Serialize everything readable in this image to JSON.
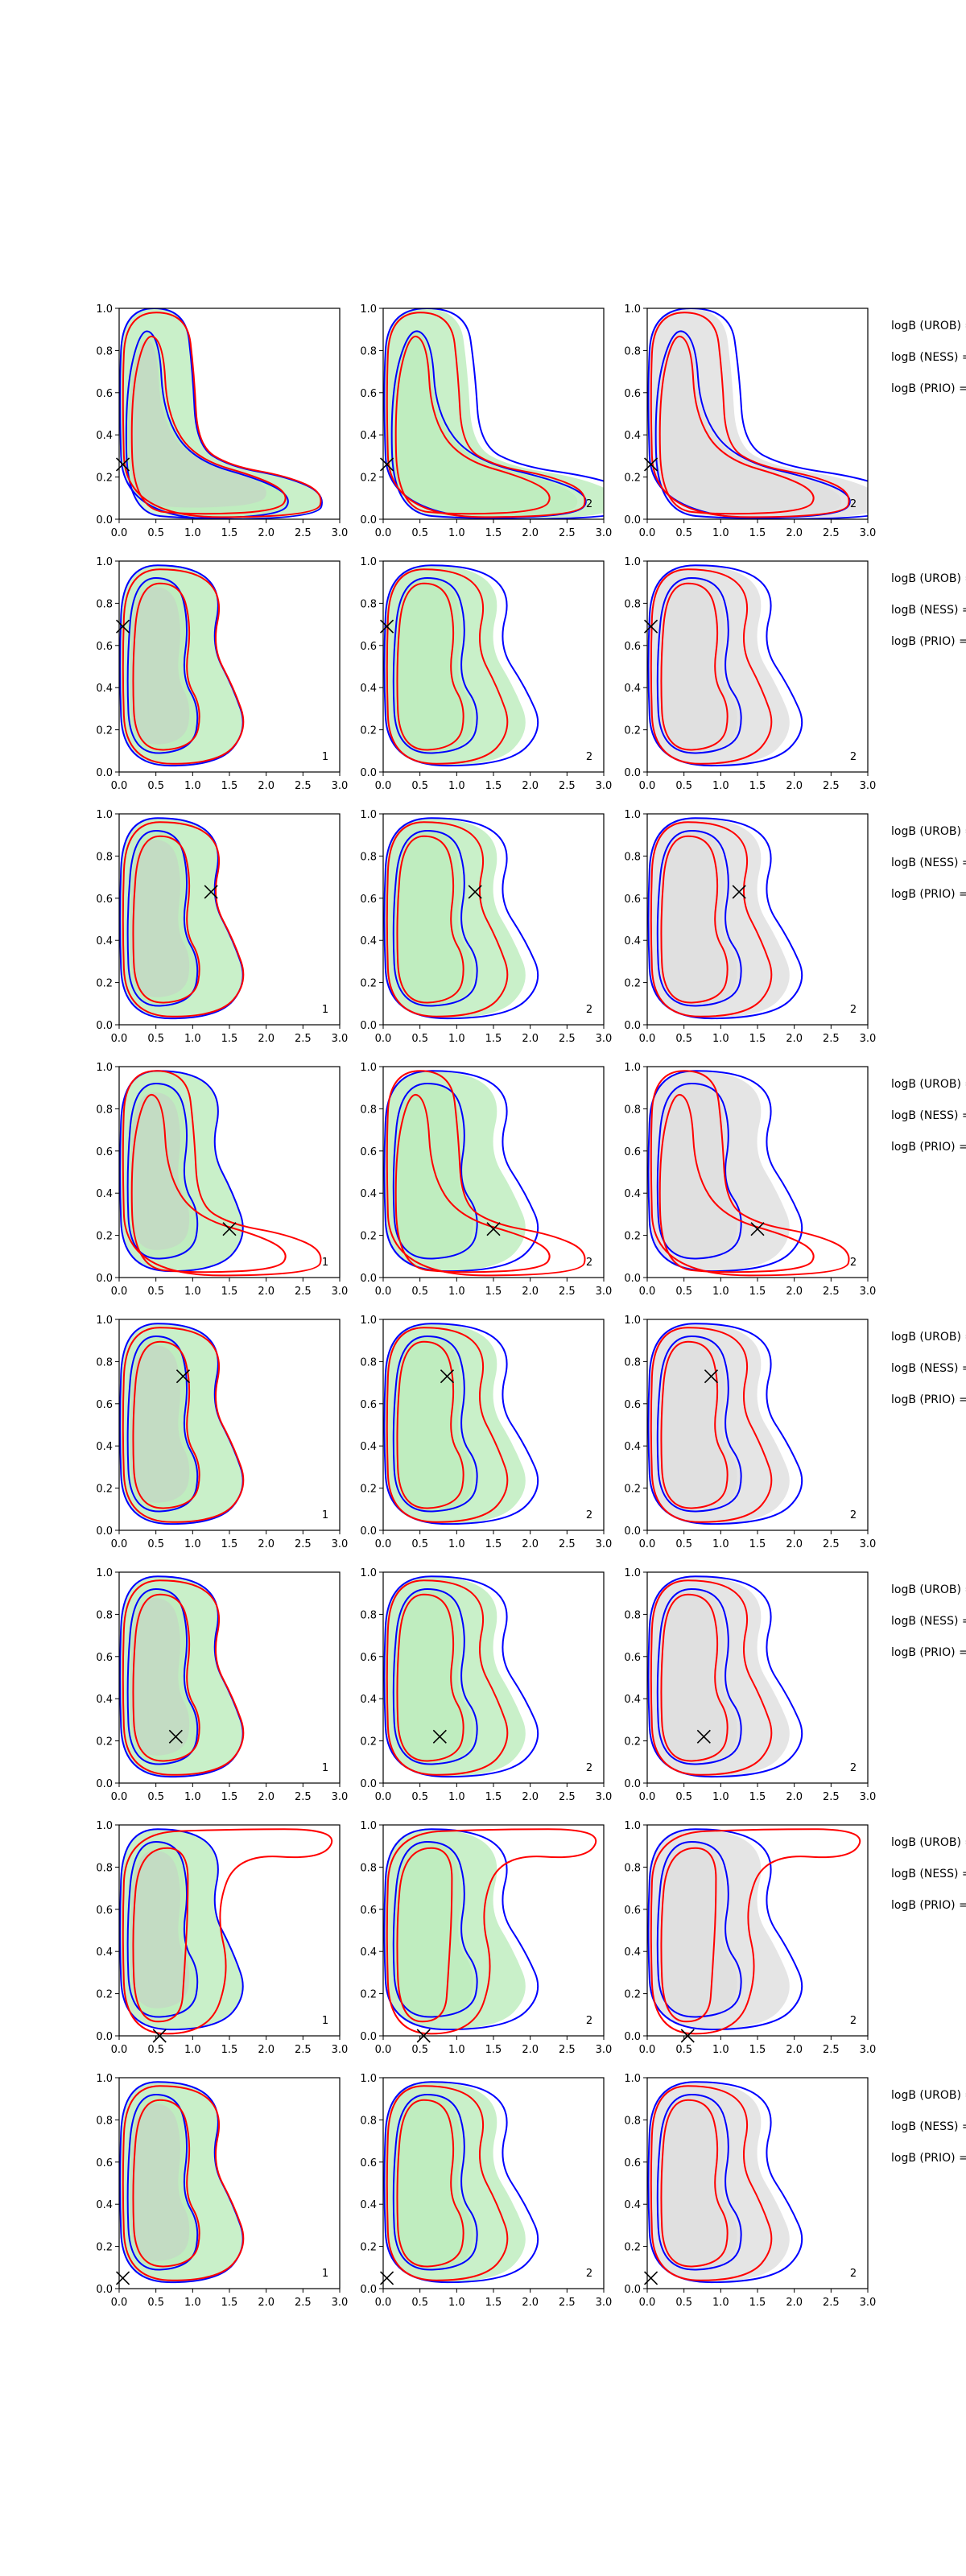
{
  "figure": {
    "legend_label_lines": [
      "logB (UROB) =",
      "logB (NESS) =",
      "logB (PRIO) ="
    ],
    "x_tick_labels": [
      "0.0",
      "0.5",
      "1.0",
      "1.5",
      "2.0",
      "2.5",
      "3.0"
    ],
    "y_tick_labels": [
      "0.0",
      "0.2",
      "0.4",
      "0.6",
      "0.8",
      "1.0"
    ],
    "colors": {
      "blue": "#0000ff",
      "red": "#ff0000",
      "green_fill": "#b7ebb7",
      "grey_fill": "#dcdcdc"
    }
  },
  "chart_data": [
    {
      "type": "contour",
      "row": 1,
      "xlim": [
        0,
        3
      ],
      "ylim": [
        0,
        1
      ],
      "marker": {
        "x": 0.05,
        "y": 0.26
      },
      "panel_labels": [
        "",
        "2",
        "2"
      ],
      "fill_shape": "wide",
      "red_shape": "wide",
      "blue_shape": "wide"
    },
    {
      "type": "contour",
      "row": 2,
      "xlim": [
        0,
        3
      ],
      "ylim": [
        0,
        1
      ],
      "marker": {
        "x": 0.05,
        "y": 0.69
      },
      "panel_labels": [
        "1",
        "2",
        "2"
      ],
      "fill_shape": "tall",
      "red_shape": "tall",
      "blue_shape": "tall"
    },
    {
      "type": "contour",
      "row": 3,
      "xlim": [
        0,
        3
      ],
      "ylim": [
        0,
        1
      ],
      "marker": {
        "x": 1.25,
        "y": 0.63
      },
      "panel_labels": [
        "1",
        "2",
        "2"
      ],
      "fill_shape": "tall",
      "red_shape": "tall",
      "blue_shape": "tall"
    },
    {
      "type": "contour",
      "row": 4,
      "xlim": [
        0,
        3
      ],
      "ylim": [
        0,
        1
      ],
      "marker": {
        "x": 1.5,
        "y": 0.23
      },
      "panel_labels": [
        "1",
        "2",
        "2"
      ],
      "fill_shape": "tall",
      "red_shape": "wide",
      "blue_shape": "tall"
    },
    {
      "type": "contour",
      "row": 5,
      "xlim": [
        0,
        3
      ],
      "ylim": [
        0,
        1
      ],
      "marker": {
        "x": 0.87,
        "y": 0.73
      },
      "panel_labels": [
        "1",
        "2",
        "2"
      ],
      "fill_shape": "tall",
      "red_shape": "tall",
      "blue_shape": "tall"
    },
    {
      "type": "contour",
      "row": 6,
      "xlim": [
        0,
        3
      ],
      "ylim": [
        0,
        1
      ],
      "marker": {
        "x": 0.77,
        "y": 0.22
      },
      "panel_labels": [
        "1",
        "2",
        "2"
      ],
      "fill_shape": "tall",
      "red_shape": "tall",
      "blue_shape": "tall"
    },
    {
      "type": "contour",
      "row": 7,
      "xlim": [
        0,
        3
      ],
      "ylim": [
        0,
        1
      ],
      "marker": {
        "x": 0.55,
        "y": 0.0
      },
      "panel_labels": [
        "1",
        "2",
        "2"
      ],
      "fill_shape": "tall",
      "red_shape": "top",
      "blue_shape": "tall"
    },
    {
      "type": "contour",
      "row": 8,
      "xlim": [
        0,
        3
      ],
      "ylim": [
        0,
        1
      ],
      "marker": {
        "x": 0.05,
        "y": 0.05
      },
      "panel_labels": [
        "1",
        "2",
        "2"
      ],
      "fill_shape": "tall",
      "red_shape": "tall",
      "blue_shape": "tall"
    }
  ]
}
